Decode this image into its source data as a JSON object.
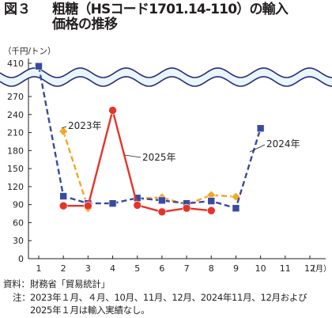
{
  "title": {
    "figure_label": "図３",
    "line1": "粗糖（HSコード1701.14-110）の輸入",
    "line2": "価格の推移"
  },
  "notes": {
    "source_label": "資料：",
    "source_text": "財務省「貿易統計」",
    "note_label": "注：",
    "note_line1": "2023年１月、４月、10月、11月、12月、2024年11月、12月および",
    "note_line2": "2025年１月は輸入実績なし。"
  },
  "colors": {
    "2023": "#f5a623",
    "2024": "#3a4aa0",
    "2025": "#e6332a",
    "axis": "#231f20",
    "break_band": "#e8f6fd",
    "break_line": "#2a2a7a"
  },
  "chart_data": {
    "type": "line",
    "unit_label": "（千円/トン）",
    "x_unit_label": "（月）",
    "categories": [
      "1",
      "2",
      "3",
      "4",
      "5",
      "6",
      "7",
      "8",
      "9",
      "10",
      "11",
      "12"
    ],
    "y_ticks_lower": [
      "0",
      "30",
      "60",
      "90",
      "120",
      "150",
      "180",
      "210",
      "240",
      "270"
    ],
    "y_tick_upper": "410",
    "ylim": [
      0,
      270
    ],
    "axis_break": "between 270 and 410",
    "series": [
      {
        "name": "2023年",
        "color": "#f5a623",
        "line_style": "dashed",
        "marker": "diamond",
        "values": [
          null,
          212,
          84,
          null,
          100,
          102,
          90,
          106,
          103,
          null,
          null,
          null
        ]
      },
      {
        "name": "2024年",
        "color": "#3a4aa0",
        "line_style": "dashed",
        "marker": "square",
        "values": [
          405,
          104,
          92,
          92,
          101,
          97,
          92,
          96,
          84,
          217,
          null,
          null
        ]
      },
      {
        "name": "2025年",
        "color": "#e6332a",
        "line_style": "solid",
        "marker": "circle",
        "values": [
          null,
          88,
          88,
          247,
          89,
          78,
          84,
          80,
          null,
          null,
          null,
          null
        ]
      }
    ],
    "annotations": [
      "2023年",
      "2024年",
      "2025年"
    ],
    "legend": "inline labels"
  }
}
